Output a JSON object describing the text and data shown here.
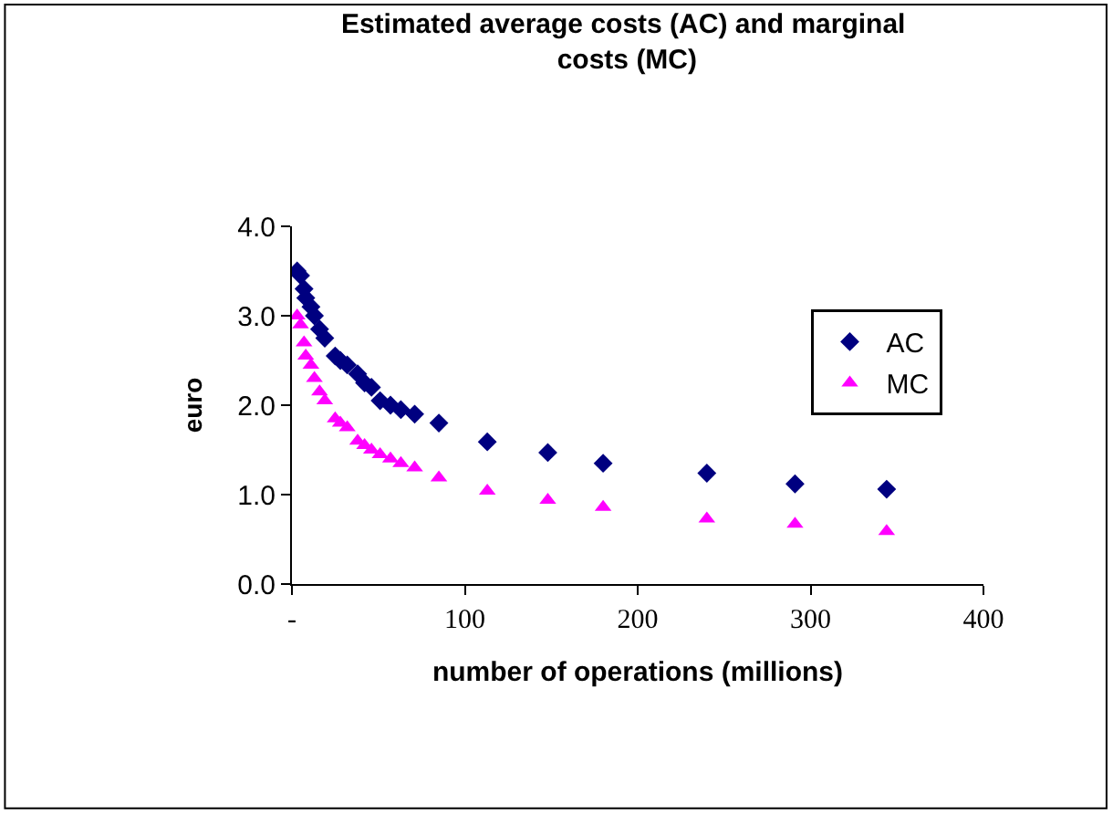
{
  "chart_data": {
    "type": "scatter",
    "title": "Estimated average costs (AC) and marginal costs (MC)",
    "xlabel": "number of operations (millions)",
    "ylabel": "euro",
    "x": [
      3,
      5,
      7,
      8,
      11,
      13,
      16,
      19,
      25,
      28,
      32,
      38,
      42,
      46,
      51,
      57,
      63,
      71,
      85,
      113,
      148,
      180,
      240,
      291,
      344
    ],
    "series": [
      {
        "name": "AC",
        "color": "#000080",
        "marker": "diamond",
        "values": [
          3.5,
          3.45,
          3.3,
          3.2,
          3.1,
          3.0,
          2.85,
          2.75,
          2.55,
          2.5,
          2.45,
          2.35,
          2.25,
          2.2,
          2.05,
          2.0,
          1.95,
          1.9,
          1.8,
          1.59,
          1.47,
          1.35,
          1.24,
          1.12,
          1.06
        ]
      },
      {
        "name": "MC",
        "color": "#ff00ff",
        "marker": "triangle",
        "values": [
          3.0,
          2.9,
          2.7,
          2.55,
          2.45,
          2.3,
          2.15,
          2.05,
          1.85,
          1.8,
          1.75,
          1.6,
          1.55,
          1.5,
          1.45,
          1.4,
          1.35,
          1.3,
          1.19,
          1.04,
          0.94,
          0.86,
          0.73,
          0.67,
          0.59
        ]
      }
    ],
    "xlim": [
      0,
      400
    ],
    "xticks": [
      {
        "value": 0,
        "label": "-"
      },
      100,
      200,
      300,
      400
    ],
    "ylim": [
      0,
      4
    ],
    "yticks": [
      {
        "value": 0,
        "label": "0.0"
      },
      {
        "value": 1,
        "label": "1.0"
      },
      {
        "value": 2,
        "label": "2.0"
      },
      {
        "value": 3,
        "label": "3.0"
      },
      {
        "value": 4,
        "label": "4.0"
      }
    ],
    "legend": "right"
  }
}
